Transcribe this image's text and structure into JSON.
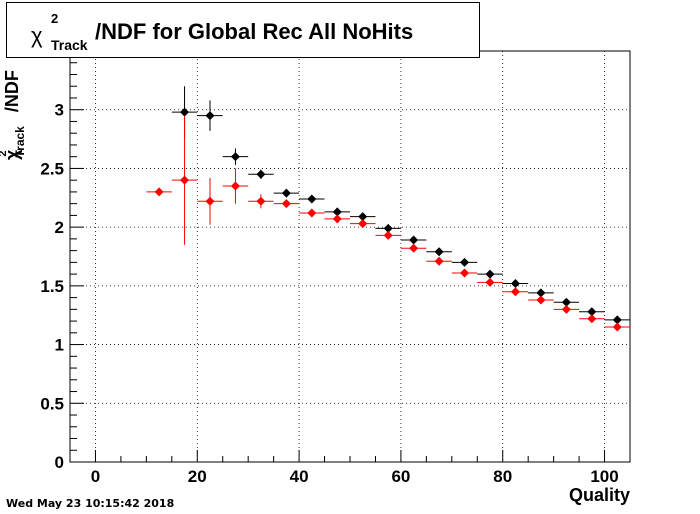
{
  "title": {
    "chi": "χ",
    "superscript": "2",
    "subscript": "Track",
    "rest": "/NDF for Global Rec All NoHits"
  },
  "timestamp": "Wed May 23 10:15:42 2018",
  "chart_data": {
    "type": "scatter",
    "xlabel": "Quality",
    "ylabel": {
      "chi": "χ",
      "superscript": "2",
      "subscript": "Track",
      "rest": "/NDF"
    },
    "xlim": [
      -5,
      105
    ],
    "ylim": [
      0,
      3.5
    ],
    "grid": true,
    "x_ticks": [
      0,
      20,
      40,
      60,
      80,
      100
    ],
    "y_ticks": [
      0,
      0.5,
      1,
      1.5,
      2,
      2.5,
      3
    ],
    "y_tick_labels": [
      "0",
      "0.5",
      "1",
      "1.5",
      "2",
      "2.5",
      "3"
    ],
    "series": [
      {
        "color": "#000000",
        "x": [
          17.5,
          22.5,
          27.5,
          32.5,
          37.5,
          42.5,
          47.5,
          52.5,
          57.5,
          62.5,
          67.5,
          72.5,
          77.5,
          82.5,
          87.5,
          92.5,
          97.5,
          102.5
        ],
        "y": [
          2.98,
          2.95,
          2.6,
          2.45,
          2.29,
          2.24,
          2.13,
          2.09,
          1.99,
          1.89,
          1.79,
          1.7,
          1.6,
          1.52,
          1.44,
          1.36,
          1.28,
          1.21
        ],
        "yerr": [
          0.22,
          0.13,
          0.07,
          0.04,
          0.03,
          0.02,
          0.02,
          0.02,
          0.02,
          0.02,
          0.01,
          0.01,
          0.01,
          0.01,
          0.01,
          0.01,
          0.01,
          0.01
        ],
        "xerr": 2.5
      },
      {
        "color": "#ff0000",
        "x": [
          12.5,
          17.5,
          22.5,
          27.5,
          32.5,
          37.5,
          42.5,
          47.5,
          52.5,
          57.5,
          62.5,
          67.5,
          72.5,
          77.5,
          82.5,
          87.5,
          92.5,
          97.5,
          102.5
        ],
        "y": [
          2.3,
          2.4,
          2.22,
          2.35,
          2.22,
          2.2,
          2.12,
          2.07,
          2.03,
          1.93,
          1.82,
          1.71,
          1.61,
          1.53,
          1.45,
          1.38,
          1.3,
          1.22,
          1.15
        ],
        "yerr": [
          0.0,
          0.55,
          0.2,
          0.15,
          0.06,
          0.03,
          0.02,
          0.02,
          0.02,
          0.02,
          0.01,
          0.01,
          0.01,
          0.01,
          0.01,
          0.01,
          0.01,
          0.01,
          0.01
        ],
        "xerr": 2.5
      }
    ]
  }
}
